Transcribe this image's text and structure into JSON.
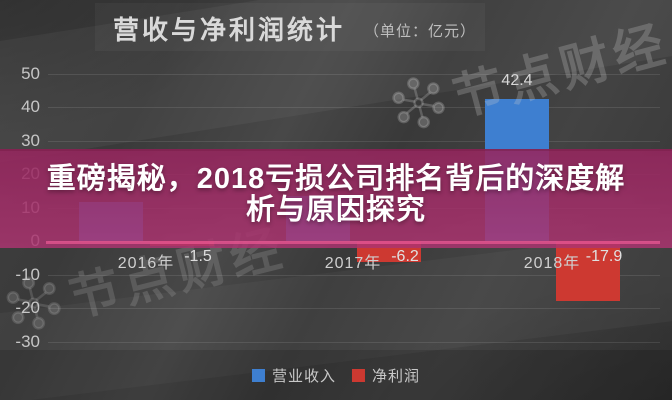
{
  "header": {
    "title": "营收与净利润统计",
    "unit": "（单位：亿元）"
  },
  "overlay": {
    "line1": "重磅揭秘，2018亏损公司排名背后的深度解",
    "line2": "析与原因探究"
  },
  "legend": {
    "items": [
      {
        "label": "营业收入",
        "color": "#3E7FD0"
      },
      {
        "label": "净利润",
        "color": "#CD3931"
      }
    ]
  },
  "watermark": {
    "text": "节点财经",
    "icon": "molecule-network-icon"
  },
  "colors": {
    "revenue_blue": "#3E7FD0",
    "net_profit_red": "#CD3931",
    "overlay_magenta": "#A13268",
    "background_gray": "#3B3B3B"
  },
  "chart_data": {
    "type": "bar",
    "title": "营收与净利润统计",
    "unit": "亿元",
    "categories": [
      "2016年",
      "2017年",
      "2018年"
    ],
    "series": [
      {
        "name": "营业收入",
        "color": "#3E7FD0",
        "values": [
          11.5,
          13.5,
          42.4
        ],
        "labels": [
          "",
          "",
          "42.4"
        ]
      },
      {
        "name": "净利润",
        "color": "#CD3931",
        "values": [
          -1.5,
          -6.2,
          -17.9
        ],
        "labels": [
          "-1.5",
          "-6.2",
          "-17.9"
        ]
      }
    ],
    "yticks": [
      50,
      40,
      30,
      20,
      10,
      0,
      -10,
      -20,
      -30
    ],
    "ylim": [
      -30,
      50
    ],
    "grid": true,
    "legend_position": "bottom"
  }
}
